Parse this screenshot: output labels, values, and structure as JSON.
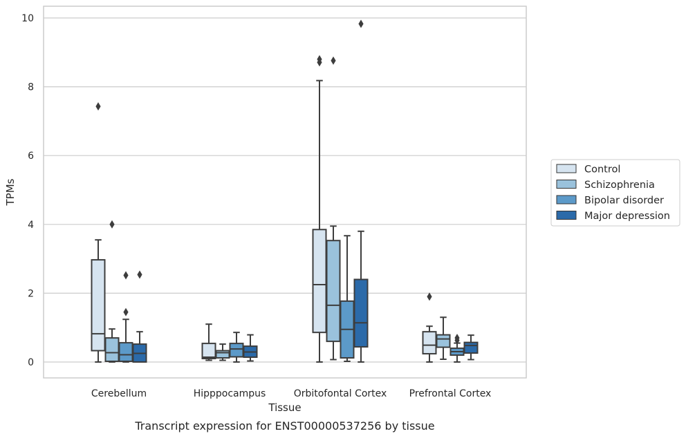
{
  "chart_data": {
    "type": "boxplot",
    "title": "",
    "caption": "Transcript expression for ENST00000537256 by tissue",
    "xlabel": "Tissue",
    "ylabel": "TPMs",
    "ylim": [
      -0.45,
      10.35
    ],
    "yticks": [
      0,
      2,
      4,
      6,
      8,
      10
    ],
    "grid": true,
    "legend_position": "right",
    "categories": [
      "Cerebellum",
      "Hipppocampus",
      "Orbitofontal Cortex",
      "Prefrontal Cortex"
    ],
    "series": [
      {
        "name": "Control",
        "color": "#d6e4f0",
        "boxes": [
          {
            "whislo": 0.0,
            "q1": 0.33,
            "med": 0.82,
            "q3": 2.97,
            "whishi": 3.55,
            "fliers": [
              7.43
            ]
          },
          {
            "whislo": 0.05,
            "q1": 0.1,
            "med": 0.14,
            "q3": 0.54,
            "whishi": 1.1,
            "fliers": []
          },
          {
            "whislo": 0.0,
            "q1": 0.86,
            "med": 2.25,
            "q3": 3.85,
            "whishi": 8.18,
            "fliers": [
              8.71,
              8.8
            ]
          },
          {
            "whislo": 0.0,
            "q1": 0.24,
            "med": 0.49,
            "q3": 0.88,
            "whishi": 1.04,
            "fliers": [
              1.9
            ]
          }
        ]
      },
      {
        "name": "Schizophrenia",
        "color": "#9ac2dc",
        "boxes": [
          {
            "whislo": 0.0,
            "q1": 0.02,
            "med": 0.27,
            "q3": 0.7,
            "whishi": 0.96,
            "fliers": [
              4.0
            ]
          },
          {
            "whislo": 0.05,
            "q1": 0.12,
            "med": 0.27,
            "q3": 0.33,
            "whishi": 0.52,
            "fliers": []
          },
          {
            "whislo": 0.07,
            "q1": 0.6,
            "med": 1.65,
            "q3": 3.53,
            "whishi": 3.95,
            "fliers": [
              8.76
            ]
          },
          {
            "whislo": 0.08,
            "q1": 0.43,
            "med": 0.67,
            "q3": 0.79,
            "whishi": 1.3,
            "fliers": []
          }
        ]
      },
      {
        "name": "Bipolar disorder",
        "color": "#5c9ac9",
        "boxes": [
          {
            "whislo": 0.0,
            "q1": 0.02,
            "med": 0.21,
            "q3": 0.56,
            "whishi": 1.24,
            "fliers": [
              1.45,
              2.52
            ]
          },
          {
            "whislo": 0.0,
            "q1": 0.15,
            "med": 0.38,
            "q3": 0.54,
            "whishi": 0.86,
            "fliers": []
          },
          {
            "whislo": 0.02,
            "q1": 0.12,
            "med": 0.95,
            "q3": 1.77,
            "whishi": 3.67,
            "fliers": []
          },
          {
            "whislo": 0.0,
            "q1": 0.2,
            "med": 0.3,
            "q3": 0.4,
            "whishi": 0.55,
            "fliers": [
              0.63,
              0.7
            ]
          }
        ]
      },
      {
        "name": "Major depression",
        "color": "#2b6aa9",
        "boxes": [
          {
            "whislo": 0.0,
            "q1": 0.0,
            "med": 0.25,
            "q3": 0.52,
            "whishi": 0.88,
            "fliers": [
              2.54
            ]
          },
          {
            "whislo": 0.03,
            "q1": 0.14,
            "med": 0.29,
            "q3": 0.46,
            "whishi": 0.79,
            "fliers": []
          },
          {
            "whislo": 0.0,
            "q1": 0.44,
            "med": 1.14,
            "q3": 2.4,
            "whishi": 3.8,
            "fliers": [
              9.83
            ]
          },
          {
            "whislo": 0.07,
            "q1": 0.26,
            "med": 0.48,
            "q3": 0.57,
            "whishi": 0.78,
            "fliers": []
          }
        ]
      }
    ]
  }
}
